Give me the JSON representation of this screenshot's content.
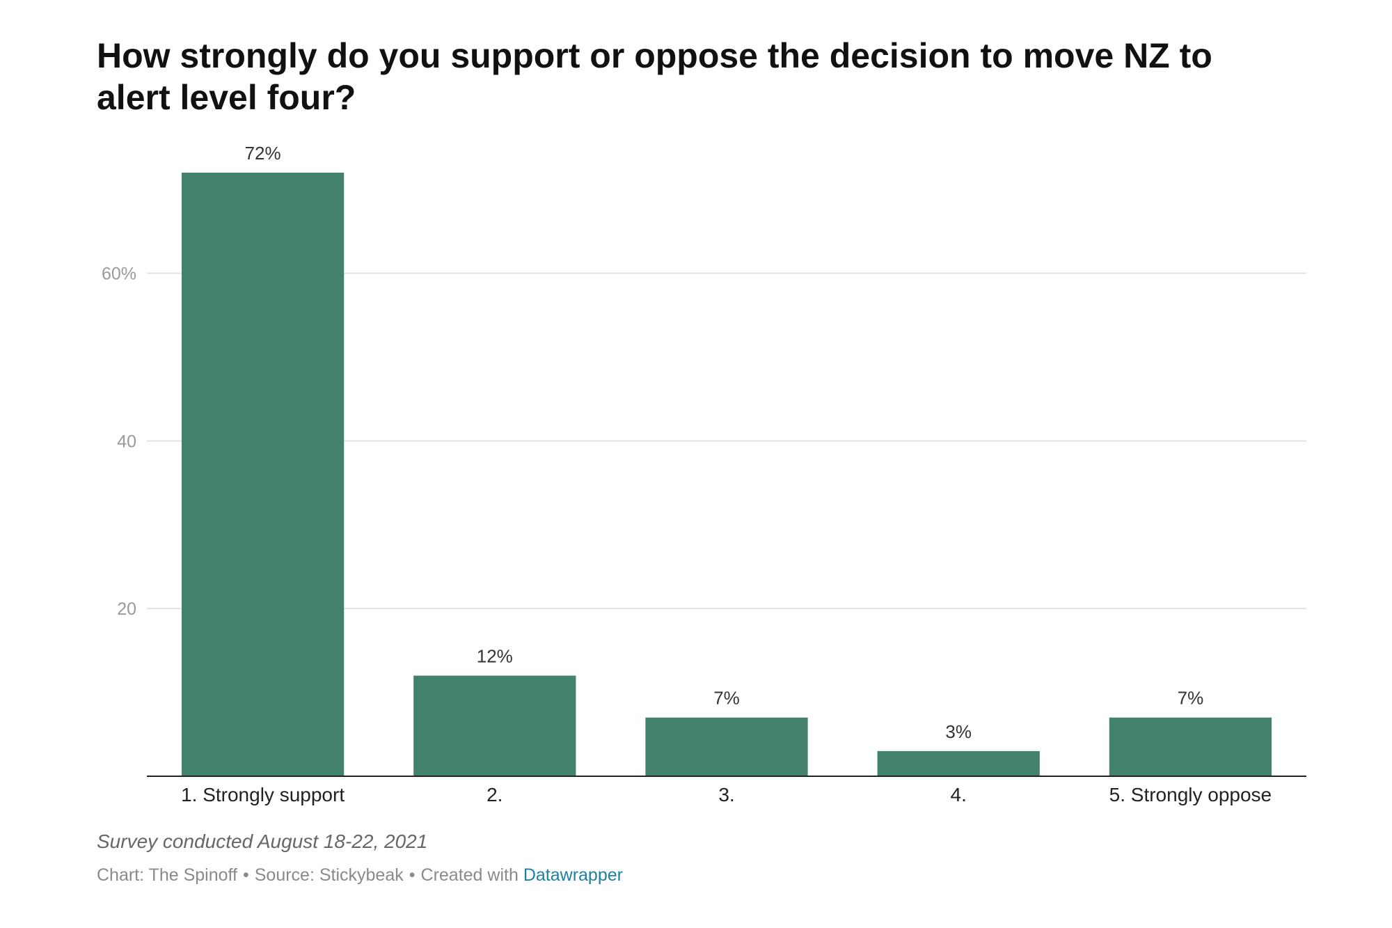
{
  "title": "How strongly do you support or oppose the decision to move NZ to alert level four?",
  "chart_data": {
    "type": "bar",
    "categories": [
      "1. Strongly support",
      "2.",
      "3.",
      "4.",
      "5. Strongly oppose"
    ],
    "values": [
      72,
      12,
      7,
      3,
      7
    ],
    "value_labels": [
      "72%",
      "12%",
      "7%",
      "3%",
      "7%"
    ],
    "y_ticks": [
      20,
      40,
      60
    ],
    "y_tick_labels": [
      "20",
      "40",
      "60%"
    ],
    "ylim": [
      0,
      72
    ],
    "grid": true,
    "bar_color": "#42826a",
    "xlabel": "",
    "ylabel": ""
  },
  "note": "Survey conducted August 18-22, 2021",
  "footer": {
    "chart_credit": "Chart: The Spinoff",
    "separator": "•",
    "source": "Source: Stickybeak",
    "created_with": "Created with",
    "tool": "Datawrapper"
  }
}
